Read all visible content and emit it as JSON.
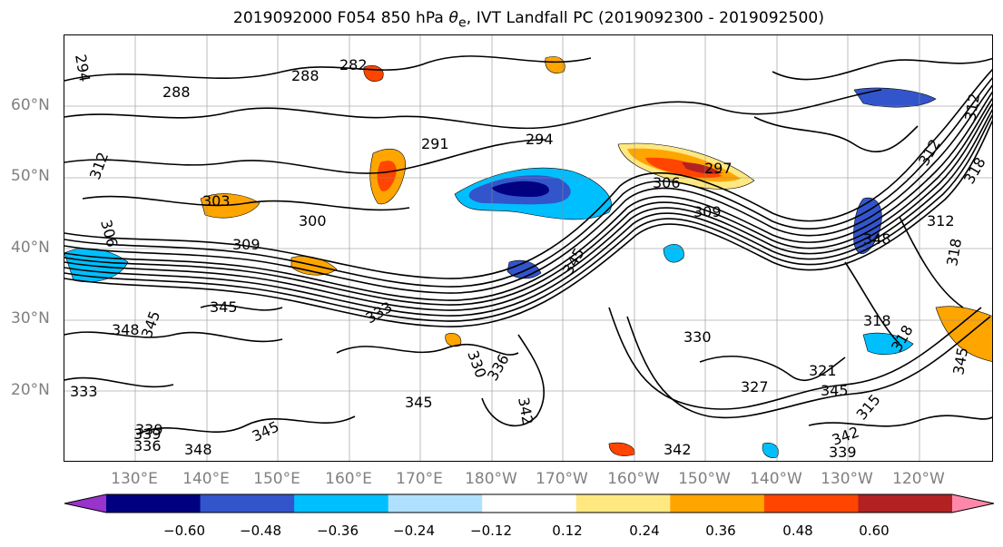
{
  "title": {
    "prefix": "2019092000 F054 850 hPa ",
    "theta": "θ",
    "sub": "e",
    "suffix": ", IVT Landfall PC (2019092300 - 2019092500)"
  },
  "map": {
    "lat_ticks": [
      "60°N",
      "50°N",
      "40°N",
      "30°N",
      "20°N"
    ],
    "lon_ticks": [
      "130°E",
      "140°E",
      "150°E",
      "160°E",
      "170°E",
      "180°W",
      "170°W",
      "160°W",
      "150°W",
      "140°W",
      "130°W",
      "120°W"
    ],
    "contour_labels": [
      "294",
      "288",
      "282",
      "288",
      "291",
      "294",
      "297",
      "306",
      "309",
      "312",
      "303",
      "300",
      "306",
      "309",
      "345",
      "345",
      "345",
      "339",
      "348",
      "345",
      "318",
      "330",
      "327",
      "321",
      "345",
      "333",
      "339",
      "336",
      "348",
      "345",
      "342",
      "339",
      "342",
      "318",
      "312",
      "318",
      "312",
      "333",
      "342",
      "330",
      "336",
      "348",
      "312",
      "318",
      "315",
      "345"
    ],
    "grid": true,
    "contour_color": "#000000"
  },
  "colorbar": {
    "colors": [
      "#9933cc",
      "#000080",
      "#3355cc",
      "#00bfff",
      "#b0e0ff",
      "#ffffff",
      "#ffe880",
      "#ffa500",
      "#ff4500",
      "#b22222",
      "#ff88aa"
    ],
    "tick_labels": [
      "−0.60",
      "−0.48",
      "−0.36",
      "−0.24",
      "−0.12",
      "0.12",
      "0.24",
      "0.36",
      "0.48",
      "0.60"
    ],
    "extend": "both"
  }
}
